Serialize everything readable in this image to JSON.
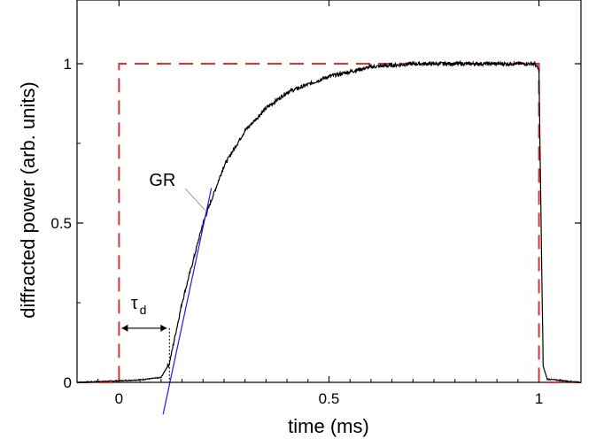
{
  "chart_data": {
    "type": "line",
    "xlabel": "time (ms)",
    "ylabel": "diffracted power (arb. units)",
    "xlim": [
      -0.1,
      1.1
    ],
    "ylim": [
      0,
      1.2
    ],
    "x_ticks": [
      0,
      0.5,
      1
    ],
    "x_tick_labels": [
      "0",
      "0.5",
      "1"
    ],
    "y_ticks": [
      0,
      0.5,
      1
    ],
    "y_tick_labels": [
      "0",
      "0.5",
      "1"
    ],
    "grid": false,
    "series": [
      {
        "style": "dashed",
        "color": "#e03030",
        "x": [
          -0.1,
          0.0,
          0.0,
          1.0,
          1.0,
          1.1
        ],
        "y": [
          0.0,
          0.0,
          1.0,
          1.0,
          0.0,
          0.0
        ]
      },
      {
        "style": "solid-noisy",
        "color": "#000000",
        "x": [
          -0.1,
          0.0,
          0.05,
          0.1,
          0.12,
          0.15,
          0.2,
          0.25,
          0.3,
          0.35,
          0.4,
          0.5,
          0.6,
          0.7,
          0.8,
          0.9,
          0.99,
          1.0,
          1.005,
          1.01,
          1.02,
          1.1
        ],
        "y": [
          0.0,
          0.005,
          0.008,
          0.015,
          0.06,
          0.25,
          0.5,
          0.68,
          0.79,
          0.86,
          0.91,
          0.96,
          0.99,
          1.0,
          1.0,
          1.0,
          1.0,
          0.98,
          0.5,
          0.05,
          0.01,
          0.0
        ]
      },
      {
        "style": "solid",
        "color": "#1a1aff",
        "x": [
          0.105,
          0.22
        ],
        "y": [
          -0.1,
          0.61
        ]
      }
    ],
    "annotations": [
      {
        "text": "GR",
        "x": 0.12,
        "y": 0.63
      },
      {
        "text": "τ",
        "subscript": "d",
        "x": 0.045,
        "y": 0.23
      }
    ],
    "arrow": {
      "from_x": 0.0,
      "to_x": 0.12,
      "y": 0.17
    }
  }
}
